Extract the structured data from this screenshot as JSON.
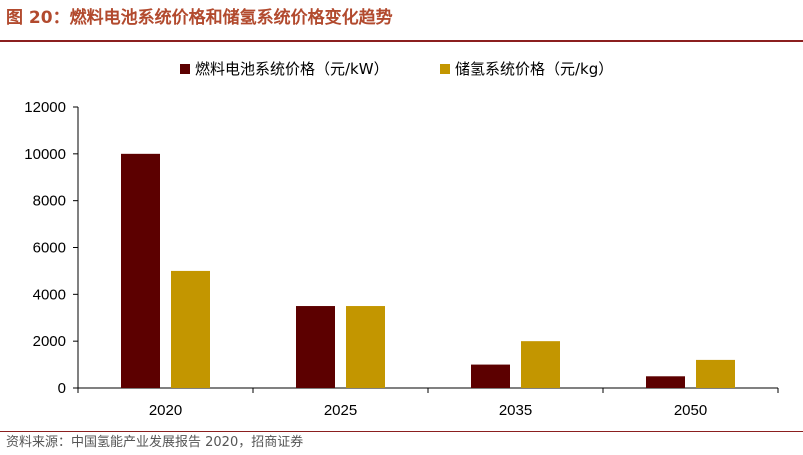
{
  "figure": {
    "title": "图 20：燃料电池系统价格和储氢系统价格变化趋势",
    "source": "资料来源：中国氢能产业发展报告 2020，招商证券"
  },
  "colors": {
    "series1": "#5c0000",
    "series2": "#c39600",
    "title": "#b24a2e",
    "rule": "#8b1f1f"
  },
  "chart_data": {
    "type": "bar",
    "categories": [
      "2020",
      "2025",
      "2035",
      "2050"
    ],
    "series": [
      {
        "name": "燃料电池系统价格（元/kW）",
        "values": [
          10000,
          3500,
          1000,
          500
        ]
      },
      {
        "name": "储氢系统价格（元/kg）",
        "values": [
          5000,
          3500,
          2000,
          1200
        ]
      }
    ],
    "ylim": [
      0,
      12000
    ],
    "yticks": [
      "0",
      "2000",
      "4000",
      "6000",
      "8000",
      "10000",
      "12000"
    ],
    "legend": "top-center",
    "grid": false
  }
}
